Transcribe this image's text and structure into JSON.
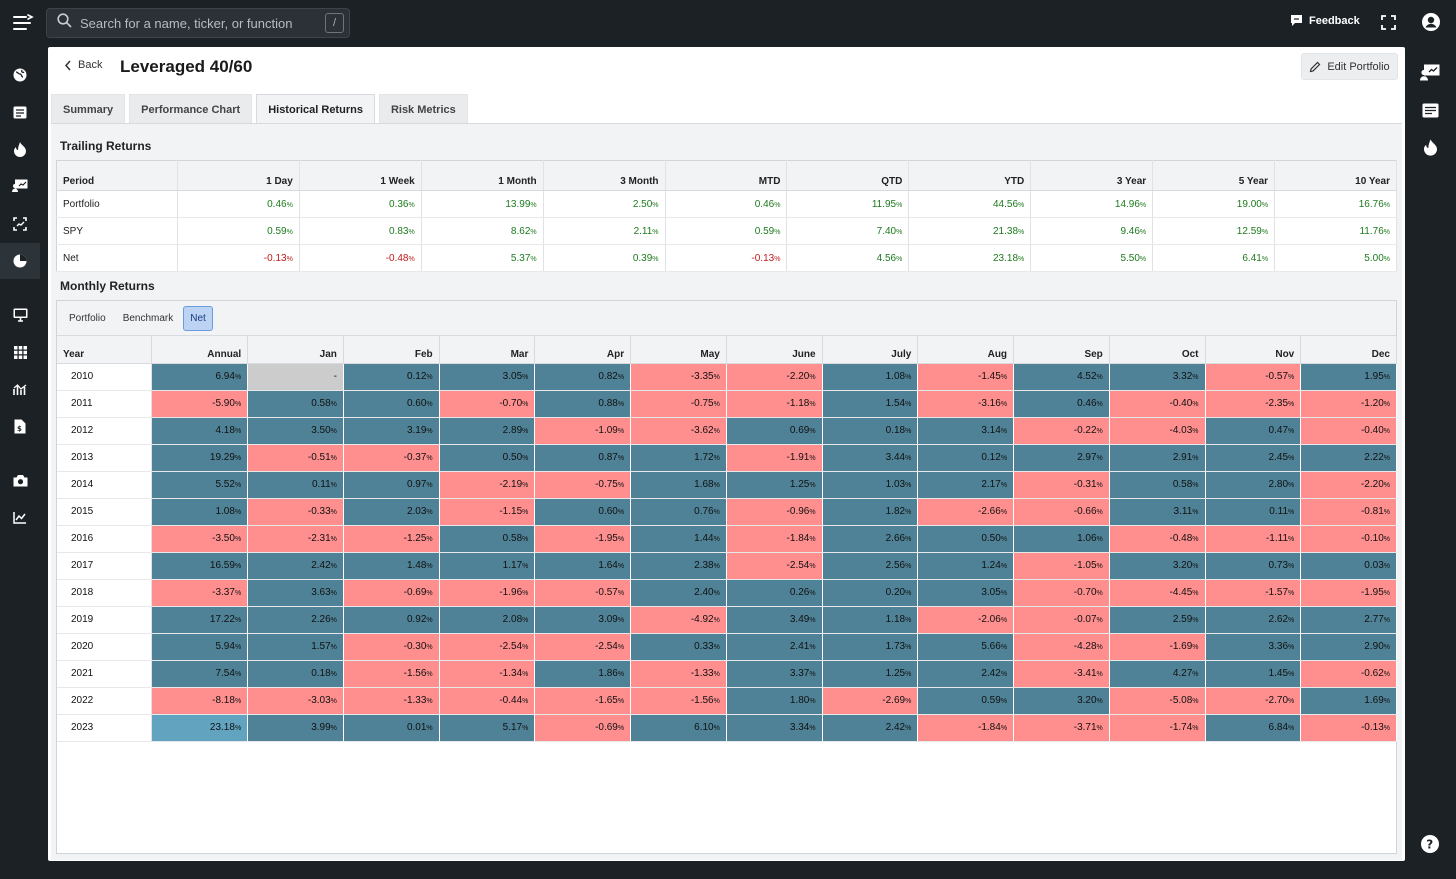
{
  "topbar": {
    "search_placeholder": "Search for a name, ticker, or function",
    "shortcut_key": "/",
    "feedback_label": "Feedback"
  },
  "header": {
    "back_label": "Back",
    "title": "Leveraged 40/60",
    "edit_label": "Edit Portfolio"
  },
  "tabs": [
    "Summary",
    "Performance Chart",
    "Historical Returns",
    "Risk Metrics"
  ],
  "active_tab": "Historical Returns",
  "trailing": {
    "title": "Trailing Returns",
    "columns": [
      "Period",
      "1 Day",
      "1 Week",
      "1 Month",
      "3 Month",
      "MTD",
      "QTD",
      "YTD",
      "3 Year",
      "5 Year",
      "10 Year"
    ],
    "rows": [
      {
        "label": "Portfolio",
        "values": [
          "0.46",
          "0.36",
          "13.99",
          "2.50",
          "0.46",
          "11.95",
          "44.56",
          "14.96",
          "19.00",
          "16.76"
        ]
      },
      {
        "label": "SPY",
        "values": [
          "0.59",
          "0.83",
          "8.62",
          "2.11",
          "0.59",
          "7.40",
          "21.38",
          "9.46",
          "12.59",
          "11.76"
        ]
      },
      {
        "label": "Net",
        "values": [
          "-0.13",
          "-0.48",
          "5.37",
          "0.39",
          "-0.13",
          "4.56",
          "23.18",
          "5.50",
          "6.41",
          "5.00"
        ]
      }
    ]
  },
  "monthly": {
    "title": "Monthly Returns",
    "toggles": [
      "Portfolio",
      "Benchmark",
      "Net"
    ],
    "active_toggle": "Net",
    "columns": [
      "Year",
      "Annual",
      "Jan",
      "Feb",
      "Mar",
      "Apr",
      "May",
      "June",
      "July",
      "Aug",
      "Sep",
      "Oct",
      "Nov",
      "Dec"
    ],
    "rows": [
      {
        "year": "2010",
        "values": [
          "6.94",
          "-",
          "0.12",
          "3.05",
          "0.82",
          "-3.35",
          "-2.20",
          "1.08",
          "-1.45",
          "4.52",
          "3.32",
          "-0.57",
          "1.95"
        ]
      },
      {
        "year": "2011",
        "values": [
          "-5.90",
          "0.58",
          "0.60",
          "-0.70",
          "0.88",
          "-0.75",
          "-1.18",
          "1.54",
          "-3.16",
          "0.46",
          "-0.40",
          "-2.35",
          "-1.20"
        ]
      },
      {
        "year": "2012",
        "values": [
          "4.18",
          "3.50",
          "3.19",
          "2.89",
          "-1.09",
          "-3.62",
          "0.69",
          "0.18",
          "3.14",
          "-0.22",
          "-4.03",
          "0.47",
          "-0.40"
        ]
      },
      {
        "year": "2013",
        "values": [
          "19.29",
          "-0.51",
          "-0.37",
          "0.50",
          "0.87",
          "1.72",
          "-1.91",
          "3.44",
          "0.12",
          "2.97",
          "2.91",
          "2.45",
          "2.22"
        ]
      },
      {
        "year": "2014",
        "values": [
          "5.52",
          "0.11",
          "0.97",
          "-2.19",
          "-0.75",
          "1.68",
          "1.25",
          "1.03",
          "2.17",
          "-0.31",
          "0.58",
          "2.80",
          "-2.20"
        ]
      },
      {
        "year": "2015",
        "values": [
          "1.08",
          "-0.33",
          "2.03",
          "-1.15",
          "0.60",
          "0.76",
          "-0.96",
          "1.82",
          "-2.66",
          "-0.66",
          "3.11",
          "0.11",
          "-0.81"
        ]
      },
      {
        "year": "2016",
        "values": [
          "-3.50",
          "-2.31",
          "-1.25",
          "0.58",
          "-1.95",
          "1.44",
          "-1.84",
          "2.66",
          "0.50",
          "1.06",
          "-0.48",
          "-1.11",
          "-0.10"
        ]
      },
      {
        "year": "2017",
        "values": [
          "16.59",
          "2.42",
          "1.48",
          "1.17",
          "1.64",
          "2.38",
          "-2.54",
          "2.56",
          "1.24",
          "-1.05",
          "3.20",
          "0.73",
          "0.03"
        ]
      },
      {
        "year": "2018",
        "values": [
          "-3.37",
          "3.63",
          "-0.69",
          "-1.96",
          "-0.57",
          "2.40",
          "0.26",
          "0.20",
          "3.05",
          "-0.70",
          "-4.45",
          "-1.57",
          "-1.95"
        ]
      },
      {
        "year": "2019",
        "values": [
          "17.22",
          "2.26",
          "0.92",
          "2.08",
          "3.09",
          "-4.92",
          "3.49",
          "1.18",
          "-2.06",
          "-0.07",
          "2.59",
          "2.62",
          "2.77"
        ]
      },
      {
        "year": "2020",
        "values": [
          "5.94",
          "1.57",
          "-0.30",
          "-2.54",
          "-2.54",
          "0.33",
          "2.41",
          "1.73",
          "5.66",
          "-4.28",
          "-1.69",
          "3.36",
          "2.90"
        ]
      },
      {
        "year": "2021",
        "values": [
          "7.54",
          "0.18",
          "-1.56",
          "-1.34",
          "1.86",
          "-1.33",
          "3.37",
          "1.25",
          "2.42",
          "-3.41",
          "4.27",
          "1.45",
          "-0.62"
        ]
      },
      {
        "year": "2022",
        "values": [
          "-8.18",
          "-3.03",
          "-1.33",
          "-0.44",
          "-1.65",
          "-1.56",
          "1.80",
          "-2.69",
          "0.59",
          "3.20",
          "-5.08",
          "-2.70",
          "1.69"
        ]
      },
      {
        "year": "2023",
        "values": [
          "23.18",
          "3.99",
          "0.01",
          "5.17",
          "-0.69",
          "6.10",
          "3.34",
          "2.42",
          "-1.84",
          "-3.71",
          "-1.74",
          "6.84",
          "-0.13"
        ]
      }
    ],
    "highlight_cell": {
      "year": "2023",
      "column": "Annual"
    }
  },
  "colors": {
    "positive_cell": "#4f8296",
    "negative_cell": "#ff8f8f",
    "highlight_cell": "#62a4c0",
    "empty_cell": "#cccccc",
    "positive_text": "#1e7a1e",
    "negative_text": "#c41a1a"
  },
  "icons": [
    "menu-icon",
    "search-icon",
    "feedback-icon",
    "expand-icon",
    "user-icon",
    "globe-icon",
    "news-icon",
    "fire-icon",
    "presentation-icon",
    "scan-icon",
    "pie-chart-icon",
    "monitor-icon",
    "grid-icon",
    "chart-icon",
    "document-icon",
    "camera-icon",
    "trend-icon",
    "help-icon"
  ]
}
